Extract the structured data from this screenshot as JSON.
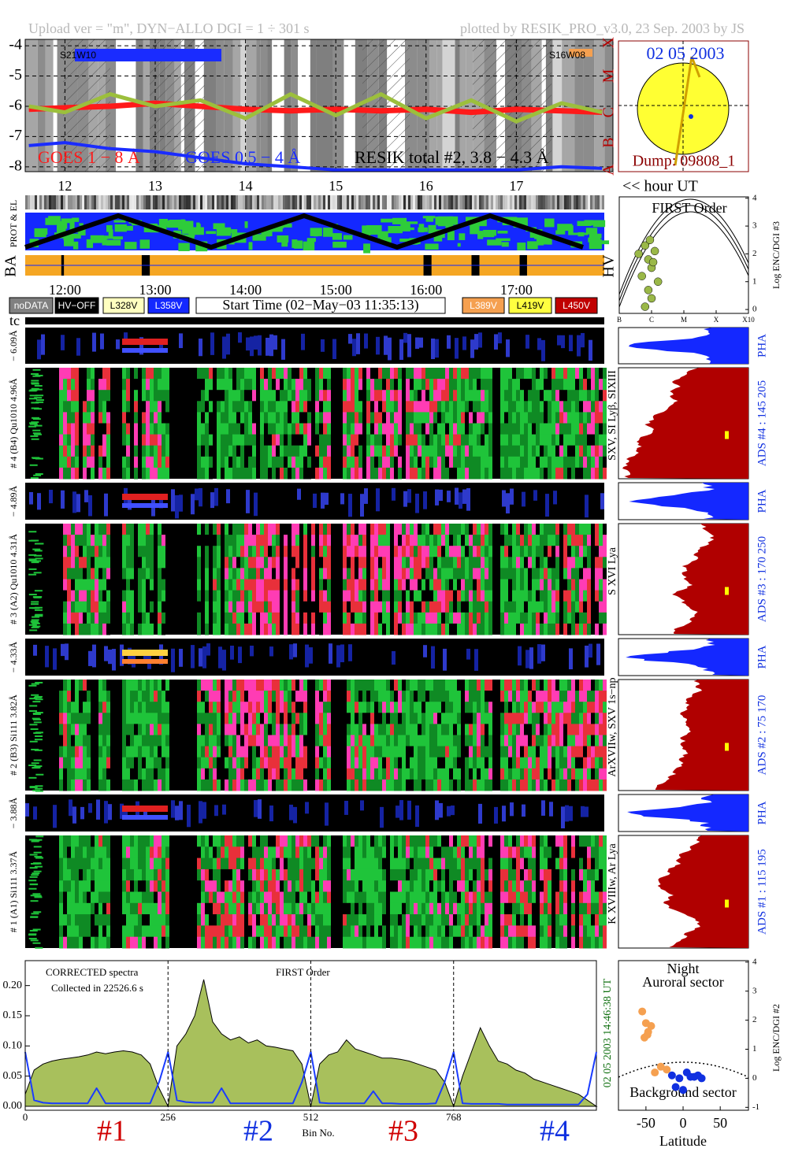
{
  "header": {
    "upload": "Upload ver = \"m\", DYN−ALLO DGI =   1 ÷ 301 s",
    "plotted": "plotted by RESIK_PRO_v3.0, 23 Sep. 2003 by JS"
  },
  "sun": {
    "date": "02 05 2003",
    "dump": "Dump: 09808_1"
  },
  "strips": {
    "hour_unit": "<< hour UT",
    "prot": "PROT & EL",
    "ba": "BA",
    "hv": "HV",
    "tc": "tc",
    "times": [
      "12:00",
      "13:00",
      "14:00",
      "15:00",
      "16:00",
      "17:00"
    ]
  },
  "legend": [
    "noDATA",
    "HV−OFF",
    "L328V",
    "L358V",
    "Start Time (02−May−03 11:35:13)",
    "L389V",
    "L419V",
    "L450V"
  ],
  "channels": [
    {
      "range": "− 6.09Å",
      "name": "# 4 (B4) Qu1010 4.96Å",
      "lines": "SXV, SI Lyβ, SIXIII",
      "ads": "ADS #4 :  145 205",
      "pha": "PHA"
    },
    {
      "range": "− 4.89Å",
      "name": "# 3 (A2) Qu1010 4.31Å",
      "lines": "S XVI Lya",
      "ads": "ADS #3 :  170 250",
      "pha": "PHA"
    },
    {
      "range": "− 4.33Å",
      "name": "# 2 (B3) Si111 3.82Å",
      "lines": "ArXVIIw, SXV 1s−np",
      "ads": "ADS #2 :  75 170",
      "pha": "PHA"
    },
    {
      "range": "− 3.88Å",
      "name": "# 1 (A1) Si111 3.37Å",
      "lines": "K XVIIIw, Ar Lya",
      "ads": "ADS #1 :  115 195",
      "pha": "PHA"
    }
  ],
  "chart_data": [
    {
      "type": "line",
      "grid": true,
      "annotations": [
        "S21W10",
        "S16W08"
      ],
      "xlim": [
        11.56,
        18.07
      ],
      "xticks": [
        12,
        13,
        14,
        15,
        16,
        17
      ],
      "ylim": [
        -8.16,
        -3.79
      ],
      "yticks": [
        -4,
        -5,
        -6,
        -7,
        -8
      ],
      "y2lim": [
        -8.16,
        -3.79
      ],
      "y2ticks": [
        {
          "value": -3.9,
          "label": "X"
        },
        {
          "value": -5,
          "label": "M"
        },
        {
          "value": -6.2,
          "label": "C"
        },
        {
          "value": -7.2,
          "label": "B"
        },
        {
          "value": -8.1,
          "label": "A"
        }
      ],
      "x": [
        11.6,
        12.0,
        12.5,
        13.0,
        13.5,
        14.0,
        14.5,
        15.0,
        15.5,
        16.0,
        16.5,
        17.0,
        17.5,
        17.95
      ],
      "series": [
        {
          "name": "GOES 1 − 8 Å",
          "color": "#ff1a1a",
          "values": [
            -6.1,
            -6.05,
            -6.0,
            -5.9,
            -6.0,
            -6.1,
            -6.15,
            -6.1,
            -6.15,
            -6.1,
            -6.2,
            -6.1,
            -6.15,
            -6.2
          ]
        },
        {
          "name": "GOES 0.5 − 4 Å",
          "color": "#1a2cff",
          "values": [
            -7.3,
            -7.2,
            -7.4,
            -7.5,
            -7.7,
            -7.9,
            -8.0,
            -8.1,
            -8.1,
            -8.1,
            -8.1,
            -8.1,
            -8.0,
            -8.05
          ]
        },
        {
          "name": "RESIK total #2, 3.8 − 4.3 Å",
          "color": "#9cbf3c",
          "values": [
            -6.0,
            -6.2,
            -5.6,
            -6.0,
            -5.8,
            -6.4,
            -5.6,
            -6.3,
            -5.6,
            -6.4,
            -5.8,
            -6.5,
            -5.9,
            -6.2
          ]
        }
      ]
    },
    {
      "type": "scatter",
      "title": "FIRST Order",
      "ylabel": "Log ENC/DGI #3",
      "xlim": [
        0,
        4
      ],
      "xticks": [
        {
          "value": 0,
          "label": "B"
        },
        {
          "value": 1,
          "label": "C"
        },
        {
          "value": 2,
          "label": "M"
        },
        {
          "value": 3,
          "label": "X"
        },
        {
          "value": 4,
          "label": "X10"
        }
      ],
      "ylim": [
        -0.14,
        4.05
      ],
      "yticks": [
        0,
        1,
        2,
        3,
        4
      ],
      "series": [
        {
          "color": "#9ab848",
          "x": [
            0.6,
            0.8,
            0.9,
            1.0,
            1.1,
            0.7,
            1.2,
            0.9,
            1.0,
            0.8,
            1.05,
            0.95
          ],
          "values": [
            2.0,
            2.3,
            1.8,
            1.5,
            2.1,
            1.2,
            1.0,
            0.7,
            0.4,
            0.1,
            1.7,
            2.5
          ]
        }
      ]
    },
    {
      "type": "area",
      "annotations": [
        "CORRECTED spectra",
        "Collected in 22526.6 s",
        "FIRST Order"
      ],
      "xlabel": "Bin No.",
      "stamp": "02 05 2003   14:46:38 UT",
      "sections": [
        "#1",
        "#2",
        "#3",
        "#4"
      ],
      "xlim": [
        0,
        1024
      ],
      "xticks": [
        0,
        256,
        512,
        768
      ],
      "ylim": [
        0,
        0.24
      ],
      "yticks": [
        {
          "value": 0,
          "label": "0.00"
        },
        {
          "value": 0.05,
          "label": "0.05"
        },
        {
          "value": 0.1,
          "label": "0.10"
        },
        {
          "value": 0.15,
          "label": "0.15"
        },
        {
          "value": 0.2,
          "label": "0.20"
        }
      ],
      "x": [
        0,
        16,
        32,
        48,
        64,
        80,
        96,
        112,
        128,
        144,
        160,
        176,
        192,
        208,
        224,
        240,
        256,
        272,
        288,
        304,
        320,
        336,
        352,
        368,
        384,
        400,
        416,
        432,
        448,
        464,
        480,
        496,
        512,
        528,
        544,
        560,
        576,
        592,
        608,
        624,
        640,
        656,
        672,
        688,
        704,
        720,
        736,
        752,
        768,
        784,
        800,
        816,
        832,
        848,
        864,
        880,
        896,
        912,
        928,
        944,
        960,
        976,
        992,
        1008,
        1024
      ],
      "series": [
        {
          "color": "#a8c05c",
          "values": [
            0.02,
            0.06,
            0.07,
            0.075,
            0.078,
            0.08,
            0.082,
            0.085,
            0.09,
            0.087,
            0.09,
            0.092,
            0.09,
            0.085,
            0.07,
            0.03,
            0.0,
            0.1,
            0.12,
            0.15,
            0.21,
            0.14,
            0.12,
            0.11,
            0.115,
            0.105,
            0.11,
            0.1,
            0.098,
            0.095,
            0.092,
            0.07,
            0.0,
            0.07,
            0.085,
            0.09,
            0.11,
            0.095,
            0.09,
            0.085,
            0.08,
            0.08,
            0.078,
            0.075,
            0.07,
            0.065,
            0.06,
            0.04,
            0.0,
            0.05,
            0.09,
            0.13,
            0.1,
            0.075,
            0.07,
            0.06,
            0.055,
            0.045,
            0.04,
            0.035,
            0.03,
            0.025,
            0.02,
            0.01,
            0.0
          ]
        },
        {
          "color": "#1a3cff",
          "values": [
            0.09,
            0.01,
            0.006,
            0.005,
            0.005,
            0.005,
            0.005,
            0.005,
            0.03,
            0.005,
            0.005,
            0.005,
            0.005,
            0.005,
            0.005,
            0.04,
            0.09,
            0.01,
            0.007,
            0.006,
            0.006,
            0.006,
            0.03,
            0.005,
            0.005,
            0.005,
            0.005,
            0.005,
            0.005,
            0.005,
            0.005,
            0.04,
            0.09,
            0.006,
            0.005,
            0.005,
            0.005,
            0.005,
            0.005,
            0.025,
            0.005,
            0.005,
            0.004,
            0.004,
            0.004,
            0.004,
            0.005,
            0.04,
            0.09,
            0.005,
            0.004,
            0.004,
            0.004,
            0.004,
            0.003,
            0.003,
            0.003,
            0.003,
            0.003,
            0.003,
            0.003,
            0.003,
            0.003,
            0.02,
            0.09
          ]
        }
      ]
    },
    {
      "type": "scatter",
      "xlabel": "Latitude",
      "ylabel": "Log ENC/DGI #2",
      "annotations": [
        "Night",
        "Auroral sector",
        "Background sector"
      ],
      "xlim": [
        -87,
        88
      ],
      "xticks": [
        -50,
        0,
        50
      ],
      "ylim": [
        -1.1,
        4.05
      ],
      "yticks": [
        -1,
        0,
        1,
        2,
        3,
        4
      ],
      "series": [
        {
          "color": "#f5a050",
          "x": [
            -55,
            -50,
            -47,
            -52,
            -48,
            -43,
            -30,
            -22,
            -38
          ],
          "values": [
            2.3,
            1.9,
            1.6,
            1.4,
            1.5,
            1.8,
            0.4,
            0.3,
            0.2
          ]
        },
        {
          "color": "#1030e0",
          "x": [
            -15,
            -5,
            5,
            10,
            20,
            25,
            -10,
            0,
            15
          ],
          "values": [
            0.1,
            0.0,
            0.2,
            0.05,
            0.1,
            0.0,
            -0.3,
            -0.4,
            0.05
          ]
        }
      ]
    }
  ]
}
